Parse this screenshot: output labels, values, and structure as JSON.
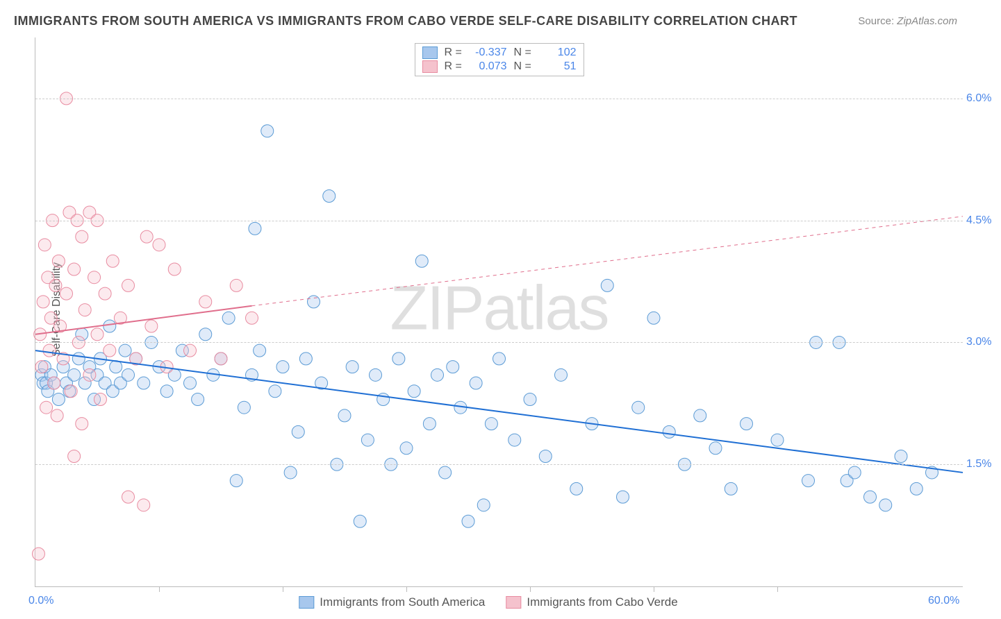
{
  "title": "IMMIGRANTS FROM SOUTH AMERICA VS IMMIGRANTS FROM CABO VERDE SELF-CARE DISABILITY CORRELATION CHART",
  "source_label": "Source:",
  "source_value": "ZipAtlas.com",
  "ylabel": "Self-Care Disability",
  "watermark": "ZIPatlas",
  "chart": {
    "type": "scatter",
    "xlim": [
      0,
      60
    ],
    "ylim": [
      0,
      6.75
    ],
    "x_ticks_minor": [
      8,
      16,
      24,
      32,
      40,
      48
    ],
    "x_ticks_labeled": [
      {
        "pos": 0,
        "label": "0.0%"
      },
      {
        "pos": 60,
        "label": "60.0%"
      }
    ],
    "y_ticks": [
      {
        "pos": 1.5,
        "label": "1.5%"
      },
      {
        "pos": 3.0,
        "label": "3.0%"
      },
      {
        "pos": 4.5,
        "label": "4.5%"
      },
      {
        "pos": 6.0,
        "label": "6.0%"
      }
    ],
    "grid_color": "#cccccc",
    "background_color": "#ffffff",
    "marker_radius": 9,
    "marker_stroke_width": 1,
    "marker_fill_opacity": 0.35,
    "series": [
      {
        "id": "south_america",
        "label": "Immigrants from South America",
        "color_fill": "#a7c7ed",
        "color_stroke": "#5b9bd5",
        "r_value": "-0.337",
        "n_value": "102",
        "trend": {
          "x1": 0,
          "y1": 2.9,
          "x2": 60,
          "y2": 1.4,
          "color": "#1f6fd4",
          "width": 2
        },
        "points": [
          [
            0.4,
            2.6
          ],
          [
            0.5,
            2.5
          ],
          [
            0.6,
            2.7
          ],
          [
            0.7,
            2.5
          ],
          [
            0.8,
            2.4
          ],
          [
            1.0,
            2.6
          ],
          [
            1.2,
            2.5
          ],
          [
            1.5,
            2.3
          ],
          [
            1.8,
            2.7
          ],
          [
            2.0,
            2.5
          ],
          [
            2.2,
            2.4
          ],
          [
            2.5,
            2.6
          ],
          [
            2.8,
            2.8
          ],
          [
            3.0,
            3.1
          ],
          [
            3.2,
            2.5
          ],
          [
            3.5,
            2.7
          ],
          [
            3.8,
            2.3
          ],
          [
            4.0,
            2.6
          ],
          [
            4.2,
            2.8
          ],
          [
            4.5,
            2.5
          ],
          [
            4.8,
            3.2
          ],
          [
            5.0,
            2.4
          ],
          [
            5.2,
            2.7
          ],
          [
            5.5,
            2.5
          ],
          [
            5.8,
            2.9
          ],
          [
            6.0,
            2.6
          ],
          [
            6.5,
            2.8
          ],
          [
            7.0,
            2.5
          ],
          [
            7.5,
            3.0
          ],
          [
            8.0,
            2.7
          ],
          [
            8.5,
            2.4
          ],
          [
            9.0,
            2.6
          ],
          [
            9.5,
            2.9
          ],
          [
            10.0,
            2.5
          ],
          [
            10.5,
            2.3
          ],
          [
            11.0,
            3.1
          ],
          [
            11.5,
            2.6
          ],
          [
            12.0,
            2.8
          ],
          [
            12.5,
            3.3
          ],
          [
            13.0,
            1.3
          ],
          [
            13.5,
            2.2
          ],
          [
            14.0,
            2.6
          ],
          [
            14.2,
            4.4
          ],
          [
            14.5,
            2.9
          ],
          [
            15.0,
            5.6
          ],
          [
            15.5,
            2.4
          ],
          [
            16.0,
            2.7
          ],
          [
            16.5,
            1.4
          ],
          [
            17.0,
            1.9
          ],
          [
            17.5,
            2.8
          ],
          [
            18.0,
            3.5
          ],
          [
            18.5,
            2.5
          ],
          [
            19.0,
            4.8
          ],
          [
            19.5,
            1.5
          ],
          [
            20.0,
            2.1
          ],
          [
            20.5,
            2.7
          ],
          [
            21.0,
            0.8
          ],
          [
            21.5,
            1.8
          ],
          [
            22.0,
            2.6
          ],
          [
            22.5,
            2.3
          ],
          [
            23.0,
            1.5
          ],
          [
            23.5,
            2.8
          ],
          [
            24.0,
            1.7
          ],
          [
            24.5,
            2.4
          ],
          [
            25.0,
            4.0
          ],
          [
            25.5,
            2.0
          ],
          [
            26.0,
            2.6
          ],
          [
            26.5,
            1.4
          ],
          [
            27.0,
            2.7
          ],
          [
            27.5,
            2.2
          ],
          [
            28.0,
            0.8
          ],
          [
            28.5,
            2.5
          ],
          [
            29.0,
            1.0
          ],
          [
            29.5,
            2.0
          ],
          [
            30.0,
            2.8
          ],
          [
            31.0,
            1.8
          ],
          [
            32.0,
            2.3
          ],
          [
            33.0,
            1.6
          ],
          [
            34.0,
            2.6
          ],
          [
            35.0,
            1.2
          ],
          [
            36.0,
            2.0
          ],
          [
            37.0,
            3.7
          ],
          [
            38.0,
            1.1
          ],
          [
            39.0,
            2.2
          ],
          [
            40.0,
            3.3
          ],
          [
            41.0,
            1.9
          ],
          [
            42.0,
            1.5
          ],
          [
            43.0,
            2.1
          ],
          [
            44.0,
            1.7
          ],
          [
            45.0,
            1.2
          ],
          [
            46.0,
            2.0
          ],
          [
            48.0,
            1.8
          ],
          [
            50.0,
            1.3
          ],
          [
            50.5,
            3.0
          ],
          [
            52.0,
            3.0
          ],
          [
            52.5,
            1.3
          ],
          [
            53.0,
            1.4
          ],
          [
            54.0,
            1.1
          ],
          [
            55.0,
            1.0
          ],
          [
            56.0,
            1.6
          ],
          [
            57.0,
            1.2
          ],
          [
            58.0,
            1.4
          ]
        ]
      },
      {
        "id": "cabo_verde",
        "label": "Immigrants from Cabo Verde",
        "color_fill": "#f5c2cd",
        "color_stroke": "#e88ba0",
        "r_value": "0.073",
        "n_value": "51",
        "trend": {
          "x1": 0,
          "y1": 3.1,
          "solid_x2": 14,
          "solid_y2": 3.45,
          "x2": 60,
          "y2": 4.55,
          "color": "#e06e8c",
          "width": 2
        },
        "points": [
          [
            0.3,
            3.1
          ],
          [
            0.4,
            2.7
          ],
          [
            0.5,
            3.5
          ],
          [
            0.6,
            4.2
          ],
          [
            0.7,
            2.2
          ],
          [
            0.8,
            3.8
          ],
          [
            0.9,
            2.9
          ],
          [
            1.0,
            3.3
          ],
          [
            1.1,
            4.5
          ],
          [
            1.2,
            2.5
          ],
          [
            1.3,
            3.7
          ],
          [
            1.4,
            2.1
          ],
          [
            1.5,
            4.0
          ],
          [
            1.6,
            3.2
          ],
          [
            1.8,
            2.8
          ],
          [
            2.0,
            6.0
          ],
          [
            2.0,
            3.6
          ],
          [
            2.2,
            4.6
          ],
          [
            2.3,
            2.4
          ],
          [
            2.5,
            3.9
          ],
          [
            2.5,
            1.6
          ],
          [
            2.7,
            4.5
          ],
          [
            2.8,
            3.0
          ],
          [
            3.0,
            4.3
          ],
          [
            3.0,
            2.0
          ],
          [
            3.2,
            3.4
          ],
          [
            3.5,
            4.6
          ],
          [
            3.5,
            2.6
          ],
          [
            3.8,
            3.8
          ],
          [
            4.0,
            4.5
          ],
          [
            4.0,
            3.1
          ],
          [
            4.2,
            2.3
          ],
          [
            4.5,
            3.6
          ],
          [
            4.8,
            2.9
          ],
          [
            5.0,
            4.0
          ],
          [
            5.5,
            3.3
          ],
          [
            6.0,
            1.1
          ],
          [
            6.0,
            3.7
          ],
          [
            6.5,
            2.8
          ],
          [
            7.0,
            1.0
          ],
          [
            7.2,
            4.3
          ],
          [
            7.5,
            3.2
          ],
          [
            8.0,
            4.2
          ],
          [
            8.5,
            2.7
          ],
          [
            9.0,
            3.9
          ],
          [
            0.2,
            0.4
          ],
          [
            10.0,
            2.9
          ],
          [
            11.0,
            3.5
          ],
          [
            12.0,
            2.8
          ],
          [
            13.0,
            3.7
          ],
          [
            14.0,
            3.3
          ]
        ]
      }
    ]
  },
  "legend_top_cols": {
    "r": "R =",
    "n": "N ="
  }
}
